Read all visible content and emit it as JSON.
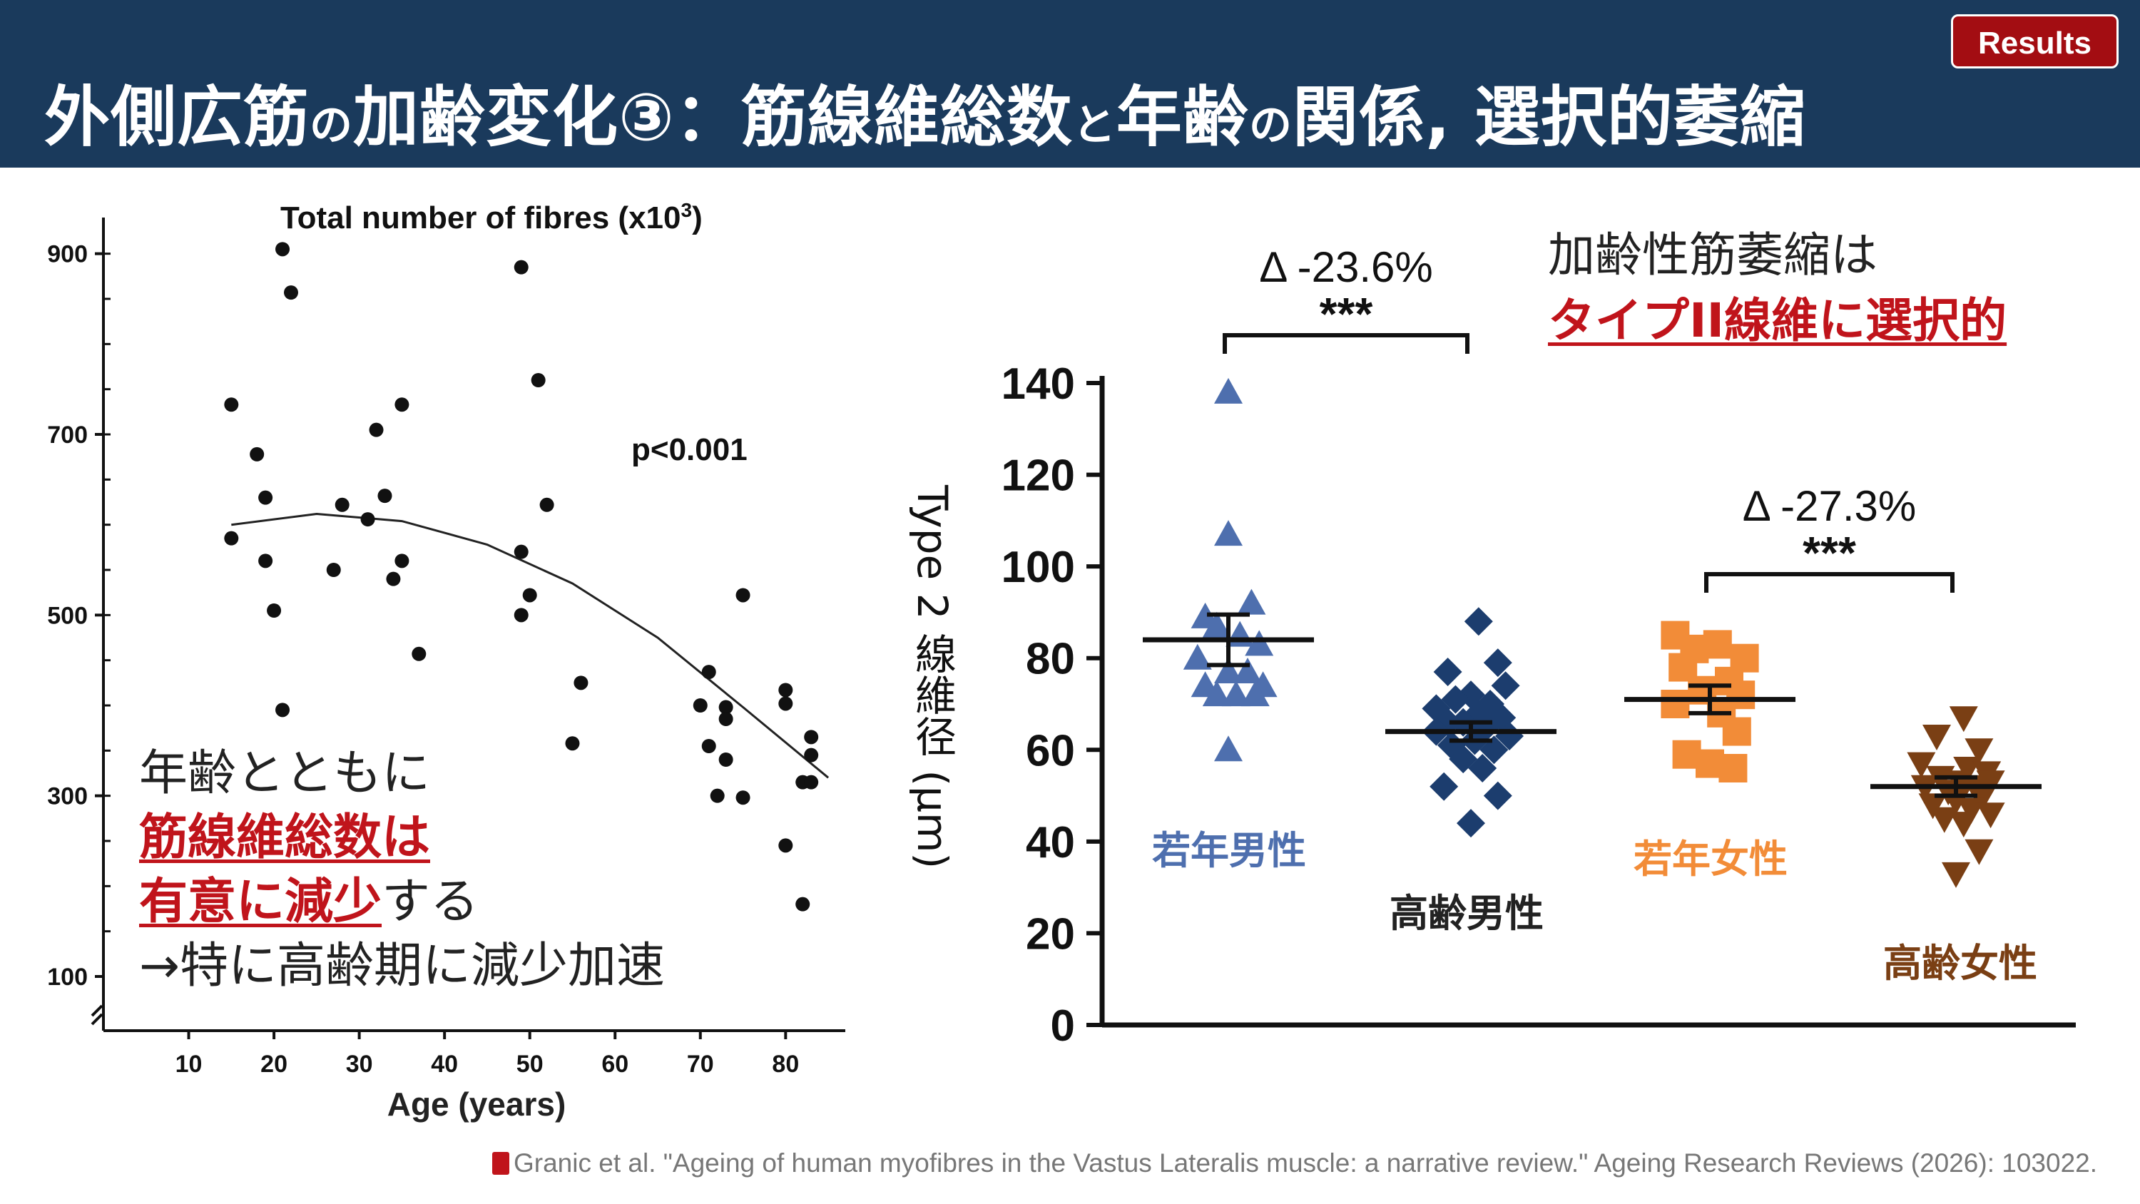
{
  "header": {
    "title_parts": [
      "外側広筋",
      "の",
      "加齢変化③：筋線維総数",
      "と",
      "年齢",
      "の",
      "関係, 選択的萎縮"
    ],
    "badge": "Results"
  },
  "colors": {
    "header_bg": "#1a3a5c",
    "badge_bg": "#a30d12",
    "accent_red": "#c0141b",
    "young_male": "#4e6fae",
    "old_male": "#1c3d6e",
    "young_female": "#f28c38",
    "old_female": "#7a3f14"
  },
  "chart_data": [
    {
      "type": "scatter",
      "title": "Total number of fibres (x10",
      "title_sup": "3",
      "title_close": ")",
      "xlabel": "Age (years)",
      "ylabel": "",
      "xlim": [
        0,
        87
      ],
      "ylim": [
        40,
        940
      ],
      "xticks": [
        10,
        20,
        30,
        40,
        50,
        60,
        70,
        80
      ],
      "yticks": [
        100,
        300,
        500,
        700,
        900
      ],
      "annotation": "p<0.001",
      "points": [
        [
          15,
          733
        ],
        [
          15,
          585
        ],
        [
          18,
          678
        ],
        [
          19,
          630
        ],
        [
          19,
          560
        ],
        [
          20,
          505
        ],
        [
          21,
          905
        ],
        [
          21,
          395
        ],
        [
          22,
          857
        ],
        [
          27,
          550
        ],
        [
          28,
          622
        ],
        [
          31,
          606
        ],
        [
          32,
          705
        ],
        [
          33,
          632
        ],
        [
          34,
          540
        ],
        [
          35,
          733
        ],
        [
          35,
          560
        ],
        [
          37,
          457
        ],
        [
          49,
          885
        ],
        [
          49,
          570
        ],
        [
          49,
          500
        ],
        [
          50,
          522
        ],
        [
          51,
          760
        ],
        [
          52,
          622
        ],
        [
          55,
          358
        ],
        [
          56,
          425
        ],
        [
          70,
          400
        ],
        [
          71,
          437
        ],
        [
          71,
          355
        ],
        [
          72,
          300
        ],
        [
          73,
          398
        ],
        [
          73,
          385
        ],
        [
          73,
          340
        ],
        [
          75,
          522
        ],
        [
          75,
          298
        ],
        [
          80,
          417
        ],
        [
          80,
          402
        ],
        [
          80,
          245
        ],
        [
          82,
          180
        ],
        [
          82,
          315
        ],
        [
          83,
          315
        ],
        [
          83,
          365
        ],
        [
          83,
          345
        ]
      ],
      "trend": [
        [
          15,
          600
        ],
        [
          25,
          612
        ],
        [
          35,
          604
        ],
        [
          45,
          578
        ],
        [
          55,
          535
        ],
        [
          65,
          475
        ],
        [
          75,
          398
        ],
        [
          85,
          320
        ]
      ]
    },
    {
      "type": "scatter",
      "title": "",
      "xlabel": "",
      "ylabel_parts": [
        "Type",
        "2",
        "線維径",
        "(μm)"
      ],
      "ylim": [
        0,
        140
      ],
      "yticks": [
        0,
        20,
        40,
        60,
        80,
        100,
        120,
        140
      ],
      "groups": [
        {
          "name": "若年男性",
          "marker": "triangle-up",
          "mean": 84,
          "sem": 5.5,
          "values": [
            138,
            107,
            92,
            89,
            87,
            85,
            83,
            80,
            77,
            77,
            74,
            74,
            72,
            72,
            72,
            60
          ],
          "offsets": [
            0,
            0,
            0.3,
            -0.3,
            -0.15,
            0.15,
            0.4,
            -0.4,
            0,
            0.25,
            -0.3,
            0.45,
            -0.15,
            0.1,
            0.35,
            0
          ]
        },
        {
          "name": "高齢男性",
          "marker": "diamond",
          "mean": 64,
          "sem": 2,
          "values": [
            88,
            79,
            77,
            74,
            72,
            71,
            70,
            69,
            68,
            67,
            66,
            66,
            65,
            64,
            63,
            62,
            61,
            60,
            58,
            56,
            52,
            50,
            44
          ],
          "offsets": [
            0.1,
            0.35,
            -0.3,
            0.45,
            0,
            -0.2,
            0.25,
            -0.45,
            0.1,
            0.4,
            -0.3,
            -0.1,
            0.2,
            -0.45,
            0.5,
            0.05,
            -0.25,
            0.3,
            -0.1,
            0.15,
            -0.35,
            0.35,
            0
          ]
        },
        {
          "name": "若年女性",
          "marker": "square",
          "mean": 71,
          "sem": 3,
          "values": [
            85,
            83,
            82,
            80,
            78,
            75,
            73,
            72,
            70,
            68,
            64,
            59,
            57,
            56
          ],
          "offsets": [
            -0.45,
            0.1,
            -0.2,
            0.45,
            -0.35,
            0.25,
            -0.1,
            0.4,
            -0.45,
            0.15,
            0.35,
            -0.3,
            0,
            0.3
          ]
        },
        {
          "name": "高齢女性",
          "marker": "triangle-down",
          "mean": 52,
          "sem": 2,
          "values": [
            67,
            63,
            60,
            57,
            56,
            55,
            54,
            53,
            53,
            52,
            52,
            51,
            50,
            49,
            48,
            47,
            46,
            45,
            44,
            38,
            33
          ],
          "offsets": [
            0.1,
            -0.25,
            0.3,
            -0.45,
            0.15,
            0.4,
            -0.2,
            0.05,
            0.45,
            -0.4,
            0.25,
            -0.1,
            0.35,
            0,
            -0.3,
            0.2,
            0.45,
            -0.15,
            0.1,
            0.3,
            0
          ]
        }
      ],
      "comparisons": [
        {
          "delta": "Δ -23.6%",
          "sig": "***",
          "from": 0,
          "to": 1
        },
        {
          "delta": "Δ -27.3%",
          "sig": "***",
          "from": 2,
          "to": 3
        }
      ]
    }
  ],
  "caption": {
    "line1": "年齢とともに",
    "line2_red": "筋線維総数は",
    "line3_red": "有意に減少",
    "line3_rest": "する",
    "line4": "→特に高齢期に減少加速"
  },
  "note": {
    "line1": "加齢性筋萎縮は",
    "line2": "タイプII線維に選択的"
  },
  "reference": "Granic et al. \"Ageing of human myofibres in the Vastus Lateralis muscle: a narrative review.\" Ageing Research Reviews (2026): 103022."
}
